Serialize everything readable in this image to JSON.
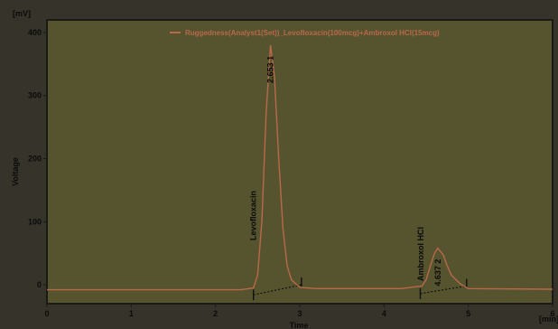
{
  "colors": {
    "background": "#36342a",
    "plot_background": "#56542f",
    "frame": "#1a1a16",
    "trace": "#b8694a",
    "text": "#0a0a0a",
    "baseline_marker": "#101010"
  },
  "chart_data": {
    "type": "line",
    "title": "",
    "xlabel": "Time",
    "ylabel": "Voltage",
    "x_unit": "[min]",
    "y_unit": "[mV]",
    "xlim": [
      0,
      6
    ],
    "ylim": [
      -30,
      420
    ],
    "x_ticks": [
      "0",
      "1",
      "2",
      "3",
      "4",
      "5",
      "6"
    ],
    "y_ticks": [
      "0",
      "100",
      "200",
      "300",
      "400"
    ],
    "grid": false,
    "legend_position": "top",
    "series": [
      {
        "name": "Ruggedness(Analyst1(Set))_Levofloxacin(100mcg)+Ambroxol HCl(15mcg)",
        "x": [
          0,
          2.3,
          2.45,
          2.5,
          2.55,
          2.6,
          2.653,
          2.7,
          2.75,
          2.8,
          2.85,
          2.9,
          3.0,
          3.2,
          4.2,
          4.45,
          4.5,
          4.55,
          4.6,
          4.637,
          4.7,
          4.75,
          4.8,
          4.9,
          5.0,
          6.0
        ],
        "y": [
          -8,
          -8,
          -5,
          15,
          100,
          270,
          380,
          330,
          200,
          90,
          30,
          8,
          -4,
          -6,
          -6,
          -2,
          8,
          30,
          50,
          58,
          48,
          30,
          15,
          2,
          -6,
          -7
        ]
      }
    ],
    "peaks": [
      {
        "number": "1",
        "retention_time": "2.653",
        "compound": "Levofloxacin",
        "x": 2.653,
        "y": 380
      },
      {
        "number": "2",
        "retention_time": "4.637",
        "compound": "Ambroxol HCl",
        "x": 4.637,
        "y": 58
      }
    ],
    "integration_baselines": [
      {
        "start": [
          2.45,
          -16
        ],
        "end": [
          3.02,
          0
        ]
      },
      {
        "start": [
          4.43,
          -14
        ],
        "end": [
          4.98,
          -2
        ]
      }
    ]
  }
}
